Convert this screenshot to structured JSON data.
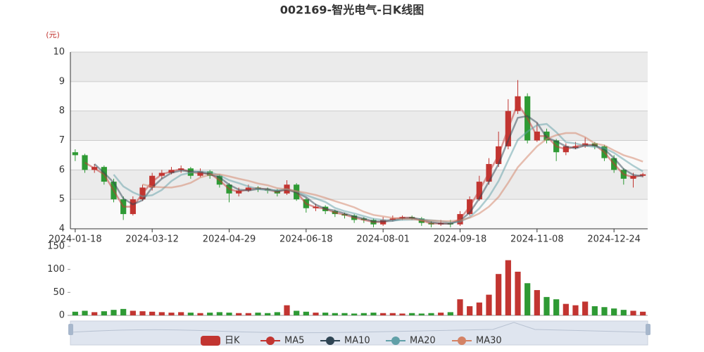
{
  "chart_data": {
    "type": "candlestick",
    "title": "002169-智光电气-日K线图",
    "y_unit": "(元)",
    "categories": [
      "2024-01-18",
      null,
      null,
      null,
      null,
      null,
      null,
      null,
      "2024-03-12",
      null,
      null,
      null,
      null,
      null,
      null,
      null,
      "2024-04-29",
      null,
      null,
      null,
      null,
      null,
      null,
      null,
      "2024-06-18",
      null,
      null,
      null,
      null,
      null,
      null,
      null,
      "2024-08-01",
      null,
      null,
      null,
      null,
      null,
      null,
      null,
      "2024-09-18",
      null,
      null,
      null,
      null,
      null,
      null,
      null,
      "2024-11-08",
      null,
      null,
      null,
      null,
      null,
      null,
      null,
      "2024-12-24",
      null,
      null,
      null
    ],
    "ylim": [
      4,
      10
    ],
    "yticks": [
      4,
      5,
      6,
      7,
      8,
      9,
      10
    ],
    "grid": true,
    "legend": "bottom",
    "series": [
      {
        "name": "日K",
        "color": "#c23531",
        "down_color": "#2e9a34",
        "values": [
          [
            6.6,
            6.5,
            6.3,
            6.7
          ],
          [
            6.5,
            6.0,
            5.9,
            6.55
          ],
          [
            6.0,
            6.1,
            5.9,
            6.2
          ],
          [
            6.1,
            5.6,
            5.5,
            6.15
          ],
          [
            5.6,
            5.0,
            4.9,
            5.7
          ],
          [
            5.0,
            4.5,
            4.3,
            5.1
          ],
          [
            4.5,
            5.0,
            4.45,
            5.1
          ],
          [
            5.0,
            5.4,
            4.95,
            5.5
          ],
          [
            5.4,
            5.8,
            5.3,
            5.9
          ],
          [
            5.8,
            5.9,
            5.7,
            6.0
          ],
          [
            5.9,
            6.0,
            5.85,
            6.1
          ],
          [
            6.0,
            6.05,
            5.9,
            6.15
          ],
          [
            6.05,
            5.8,
            5.7,
            6.1
          ],
          [
            5.8,
            5.95,
            5.75,
            6.05
          ],
          [
            5.95,
            5.8,
            5.7,
            6.0
          ],
          [
            5.8,
            5.5,
            5.4,
            5.85
          ],
          [
            5.5,
            5.2,
            4.9,
            5.55
          ],
          [
            5.2,
            5.3,
            5.1,
            5.4
          ],
          [
            5.3,
            5.4,
            5.25,
            5.5
          ],
          [
            5.4,
            5.35,
            5.25,
            5.45
          ],
          [
            5.35,
            5.3,
            5.2,
            5.4
          ],
          [
            5.3,
            5.2,
            5.1,
            5.35
          ],
          [
            5.2,
            5.5,
            5.15,
            5.65
          ],
          [
            5.5,
            5.0,
            4.95,
            5.55
          ],
          [
            5.0,
            4.7,
            4.55,
            5.05
          ],
          [
            4.7,
            4.75,
            4.6,
            4.85
          ],
          [
            4.75,
            4.6,
            4.5,
            4.8
          ],
          [
            4.6,
            4.5,
            4.4,
            4.65
          ],
          [
            4.5,
            4.45,
            4.35,
            4.55
          ],
          [
            4.45,
            4.3,
            4.2,
            4.5
          ],
          [
            4.35,
            4.3,
            4.2,
            4.4
          ],
          [
            4.3,
            4.15,
            4.05,
            4.35
          ],
          [
            4.15,
            4.3,
            4.1,
            4.4
          ],
          [
            4.3,
            4.35,
            4.25,
            4.45
          ],
          [
            4.35,
            4.4,
            4.3,
            4.45
          ],
          [
            4.4,
            4.35,
            4.3,
            4.45
          ],
          [
            4.35,
            4.2,
            4.1,
            4.4
          ],
          [
            4.2,
            4.15,
            4.05,
            4.25
          ],
          [
            4.15,
            4.2,
            4.1,
            4.3
          ],
          [
            4.2,
            4.15,
            4.05,
            4.3
          ],
          [
            4.15,
            4.5,
            4.1,
            4.6
          ],
          [
            4.5,
            5.0,
            4.45,
            5.1
          ],
          [
            5.0,
            5.6,
            4.95,
            5.8
          ],
          [
            5.6,
            6.2,
            5.5,
            6.4
          ],
          [
            6.2,
            6.8,
            6.1,
            7.3
          ],
          [
            6.8,
            8.0,
            6.7,
            8.4
          ],
          [
            8.0,
            8.5,
            7.9,
            9.05
          ],
          [
            8.5,
            7.0,
            6.9,
            8.6
          ],
          [
            7.0,
            7.3,
            6.95,
            7.6
          ],
          [
            7.3,
            7.0,
            6.9,
            7.4
          ],
          [
            7.0,
            6.6,
            6.3,
            7.05
          ],
          [
            6.6,
            6.8,
            6.5,
            6.9
          ],
          [
            6.75,
            6.8,
            6.7,
            6.95
          ],
          [
            6.8,
            6.9,
            6.75,
            7.1
          ],
          [
            6.9,
            6.8,
            6.7,
            6.95
          ],
          [
            6.8,
            6.4,
            6.3,
            6.85
          ],
          [
            6.4,
            6.0,
            5.9,
            6.5
          ],
          [
            6.0,
            5.7,
            5.5,
            6.05
          ],
          [
            5.7,
            5.8,
            5.4,
            5.9
          ],
          [
            5.8,
            5.85,
            5.75,
            5.9
          ]
        ]
      },
      {
        "name": "MA5",
        "color": "#c23531",
        "values": [
          null,
          6.25,
          6.05,
          5.85,
          5.3,
          4.75,
          4.75,
          5.2,
          5.6,
          5.85,
          5.95,
          6.03,
          5.93,
          5.88,
          5.88,
          5.65,
          5.35,
          5.25,
          5.35,
          5.38,
          5.33,
          5.25,
          5.35,
          5.25,
          4.85,
          4.73,
          4.68,
          4.55,
          4.48,
          4.38,
          4.3,
          4.23,
          4.23,
          4.33,
          4.38,
          4.38,
          4.28,
          4.18,
          4.18,
          4.18,
          4.33,
          4.75,
          5.3,
          5.9,
          6.5,
          7.4,
          8.25,
          7.75,
          7.15,
          7.15,
          6.8,
          6.7,
          6.8,
          6.85,
          6.85,
          6.6,
          6.2,
          5.85,
          5.75,
          5.83
        ]
      },
      {
        "name": "MA10",
        "color": "#2f4554",
        "values": [
          null,
          null,
          6.2,
          5.9,
          5.57,
          5.03,
          4.83,
          4.97,
          5.4,
          5.7,
          5.9,
          5.98,
          5.95,
          5.93,
          5.85,
          5.75,
          5.5,
          5.33,
          5.3,
          5.35,
          5.35,
          5.28,
          5.33,
          5.23,
          5.07,
          4.82,
          4.68,
          4.62,
          4.52,
          4.42,
          4.35,
          4.25,
          4.25,
          4.27,
          4.35,
          4.37,
          4.32,
          4.23,
          4.18,
          4.17,
          4.28,
          4.55,
          5.03,
          5.6,
          6.2,
          7,
          7.77,
          7.83,
          7.6,
          7.1,
          6.97,
          6.8,
          6.73,
          6.83,
          6.83,
          6.7,
          6.4,
          6.03,
          5.83,
          5.78
        ]
      },
      {
        "name": "MA20",
        "color": "#61a0a8",
        "values": [
          null,
          null,
          null,
          null,
          5.84,
          5.44,
          5.24,
          5.1,
          5.14,
          5.32,
          5.62,
          5.83,
          5.91,
          5.94,
          5.92,
          5.82,
          5.65,
          5.55,
          5.44,
          5.35,
          5.31,
          5.31,
          5.35,
          5.27,
          5.14,
          5.03,
          4.91,
          4.71,
          4.6,
          4.52,
          4.43,
          4.34,
          4.3,
          4.28,
          4.3,
          4.31,
          4.32,
          4.29,
          4.26,
          4.21,
          4.24,
          4.4,
          4.69,
          5.09,
          5.62,
          6.32,
          7.02,
          7.3,
          7.52,
          7.56,
          7.28,
          6.94,
          6.9,
          6.82,
          6.78,
          6.74,
          6.58,
          6.36,
          6.14,
          5.95
        ]
      },
      {
        "name": "MA30",
        "color": "#d48265",
        "values": [
          null,
          null,
          null,
          null,
          null,
          null,
          null,
          5.51,
          5.43,
          5.41,
          5.4,
          5.46,
          5.56,
          5.74,
          5.84,
          5.85,
          5.78,
          5.7,
          5.63,
          5.54,
          5.48,
          5.38,
          5.34,
          5.28,
          5.22,
          5.15,
          5.05,
          4.94,
          4.84,
          4.73,
          4.58,
          4.47,
          4.42,
          4.37,
          4.34,
          4.33,
          4.29,
          4.28,
          4.26,
          4.26,
          4.29,
          4.37,
          4.52,
          4.75,
          5.08,
          5.56,
          6.09,
          6.45,
          6.8,
          7.05,
          7.18,
          7.25,
          7.25,
          7.11,
          6.9,
          6.83,
          6.66,
          6.5,
          6.4,
          6.28
        ]
      }
    ],
    "volume": {
      "ylim": [
        0,
        150
      ],
      "yticks": [
        0,
        50,
        100,
        150
      ],
      "values": [
        8,
        10,
        7,
        9,
        12,
        14,
        10,
        9,
        8,
        7,
        6,
        7,
        6,
        5,
        6,
        7,
        6,
        5,
        5,
        6,
        5,
        7,
        22,
        10,
        8,
        6,
        6,
        5,
        5,
        4,
        5,
        6,
        5,
        5,
        4,
        5,
        4,
        5,
        6,
        7,
        35,
        20,
        28,
        45,
        90,
        120,
        95,
        70,
        55,
        40,
        35,
        25,
        22,
        30,
        20,
        18,
        15,
        12,
        10,
        8
      ]
    }
  }
}
